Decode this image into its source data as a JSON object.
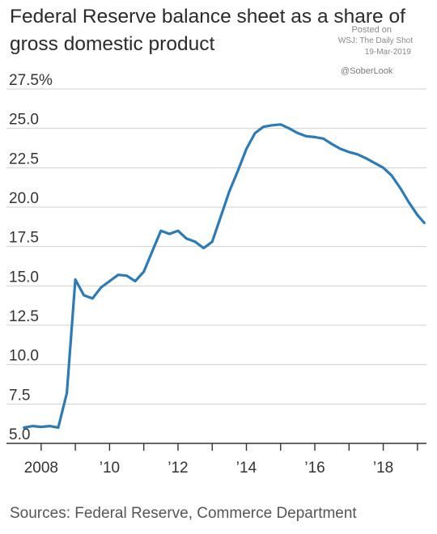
{
  "header": {
    "title": "Federal Reserve balance sheet as a share of gross domestic product"
  },
  "watermark": {
    "posted": "Posted on",
    "source": "WSJ: The Daily Shot",
    "date": "19-Mar-2019",
    "handle": "@SoberLook"
  },
  "footer": {
    "source": "Sources: Federal Reserve, Commerce Department"
  },
  "colors": {
    "line": "#2b7bb9",
    "grid": "#d0d0d0",
    "axis": "#333333"
  },
  "chart_data": {
    "type": "line",
    "title": "Federal Reserve balance sheet as a share of gross domestic product",
    "xlabel": "",
    "ylabel": "",
    "ylim": [
      5.0,
      27.5
    ],
    "xlim": [
      2007.0,
      2019.25
    ],
    "y_ticks": [
      5.0,
      7.5,
      10.0,
      12.5,
      15.0,
      17.5,
      20.0,
      22.5,
      25.0,
      27.5
    ],
    "y_tick_labels": [
      "5.0",
      "7.5",
      "10.0",
      "12.5",
      "15.0",
      "17.5",
      "20.0",
      "22.5",
      "25.0",
      "27.5%"
    ],
    "x_ticks": [
      2008,
      2010,
      2012,
      2014,
      2016,
      2018
    ],
    "x_tick_labels": [
      "2008",
      "’10",
      "’12",
      "’14",
      "’16",
      "’18"
    ],
    "x_minor_ticks": [
      2009,
      2011,
      2013,
      2015,
      2017,
      2019
    ],
    "grid": true,
    "series": [
      {
        "x": [
          2007.5,
          2007.75,
          2008.0,
          2008.25,
          2008.5,
          2008.75,
          2009.0,
          2009.25,
          2009.5,
          2009.75,
          2010.0,
          2010.25,
          2010.5,
          2010.75,
          2011.0,
          2011.25,
          2011.5,
          2011.75,
          2012.0,
          2012.25,
          2012.5,
          2012.75,
          2013.0,
          2013.25,
          2013.5,
          2013.75,
          2014.0,
          2014.25,
          2014.5,
          2014.75,
          2015.0,
          2015.25,
          2015.5,
          2015.75,
          2016.0,
          2016.25,
          2016.5,
          2016.75,
          2017.0,
          2017.25,
          2017.5,
          2017.75,
          2018.0,
          2018.25,
          2018.5,
          2018.75,
          2019.0
        ],
        "values": [
          6.0,
          6.1,
          6.05,
          6.1,
          6.0,
          8.2,
          15.4,
          14.4,
          14.2,
          14.9,
          15.3,
          15.7,
          15.65,
          15.3,
          15.9,
          17.2,
          18.5,
          18.3,
          18.5,
          18.0,
          17.8,
          17.4,
          17.8,
          19.4,
          21.0,
          22.3,
          23.7,
          24.7,
          25.1,
          25.2,
          25.25,
          25.0,
          24.7,
          24.5,
          24.45,
          24.35,
          24.0,
          23.7,
          23.5,
          23.35,
          23.1,
          22.8,
          22.5,
          22.0,
          21.2,
          20.3,
          19.5
        ]
      }
    ],
    "series_end_value": 19.0,
    "series_end_x": 2019.2
  }
}
